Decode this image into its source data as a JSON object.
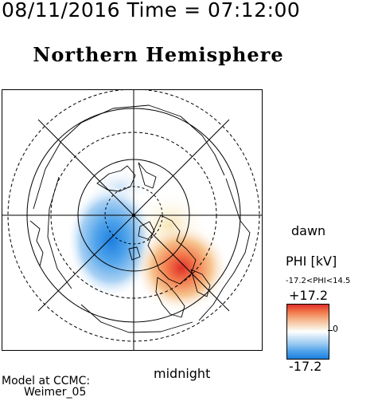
{
  "header": {
    "timestamp": "08/11/2016 Time = 07:12:00",
    "hemisphere": "Northern Hemisphere"
  },
  "map": {
    "orientation_labels": {
      "right": "dawn",
      "bottom": "midnight"
    },
    "potential_pattern": {
      "dusk_cell": "negative",
      "dawn_cell": "positive",
      "dusk_cell_color": "#1d7fe0",
      "dawn_cell_color": "#e0302a"
    },
    "icons": {
      "continents": "coastline-icon",
      "pole": "pole-marker-icon"
    }
  },
  "legend": {
    "title": "PHI [kV]",
    "range_text": "-17.2<PHI<14.5",
    "max_label": "+17.2",
    "zero_label": "0",
    "min_label": "-17.2",
    "scale_max": 17.2,
    "scale_min": -17.2,
    "colors": {
      "max": "#e0302a",
      "zero": "#ffffff",
      "min": "#1d7fe0"
    }
  },
  "credits": {
    "line1": "Model at CCMC:",
    "line2": "Weimer_05"
  }
}
